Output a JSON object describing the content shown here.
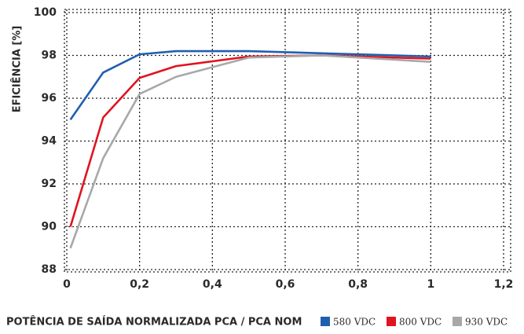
{
  "chart_data": {
    "type": "line",
    "ylabel": "EFICIÊNCIA [%]",
    "xlabel": "POTÊNCIA DE SAÍDA NORMALIZADA PCA / PCA NOM",
    "x": [
      0.01,
      0.1,
      0.2,
      0.3,
      0.5,
      0.7,
      1
    ],
    "series": [
      {
        "name": "580 VDC",
        "color": "#1f5fb0",
        "values": [
          95,
          97.2,
          98.05,
          98.2,
          98.2,
          98.1,
          97.95
        ]
      },
      {
        "name": "800 VDC",
        "color": "#e0141e",
        "values": [
          90,
          95.1,
          96.95,
          97.5,
          97.95,
          98.0,
          97.85
        ]
      },
      {
        "name": "930 VDC",
        "color": "#a8a8a8",
        "values": [
          89,
          93.2,
          96.2,
          97.0,
          97.9,
          98.0,
          97.7
        ]
      }
    ],
    "xlim": [
      0,
      1.2
    ],
    "xticks": [
      0,
      {
        "value": 0.2,
        "label": "0,2"
      },
      {
        "value": 0.4,
        "label": "0,4"
      },
      {
        "value": 0.6,
        "label": "0,6"
      },
      {
        "value": 0.8,
        "label": "0,8"
      },
      1,
      {
        "value": 1.2,
        "label": "1,2"
      }
    ],
    "ylim": [
      88,
      100
    ],
    "yticks": [
      88,
      90,
      92,
      94,
      96,
      98,
      100
    ],
    "grid": true
  }
}
